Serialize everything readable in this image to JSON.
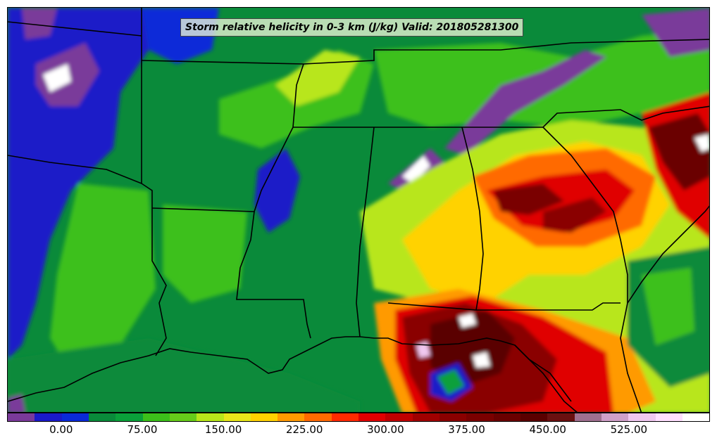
{
  "title": "Storm relative helicity in 0-3 km (J/kg) Valid: 201805281300",
  "colorbar": {
    "colors": [
      "#7a3a9a",
      "#1a1ac8",
      "#0a2ad8",
      "#098a3a",
      "#0aa03a",
      "#3cc01a",
      "#66cc1a",
      "#b8e61a",
      "#e8e61a",
      "#ffd200",
      "#ff9a00",
      "#ff6a00",
      "#ff2a00",
      "#e00000",
      "#c00000",
      "#a00000",
      "#8a0000",
      "#7a0000",
      "#6a0000",
      "#5a0000",
      "#6a1010",
      "#a07090",
      "#d0a0c8",
      "#f0c8f0",
      "#ffe0ff",
      "#ffffff"
    ],
    "tick_labels": [
      "0.00",
      "75.00",
      "150.00",
      "225.00",
      "300.00",
      "375.00",
      "450.00",
      "525.00"
    ],
    "tick_values": [
      0,
      75,
      150,
      225,
      300,
      375,
      450,
      525
    ],
    "min": -50,
    "max": 600
  }
}
